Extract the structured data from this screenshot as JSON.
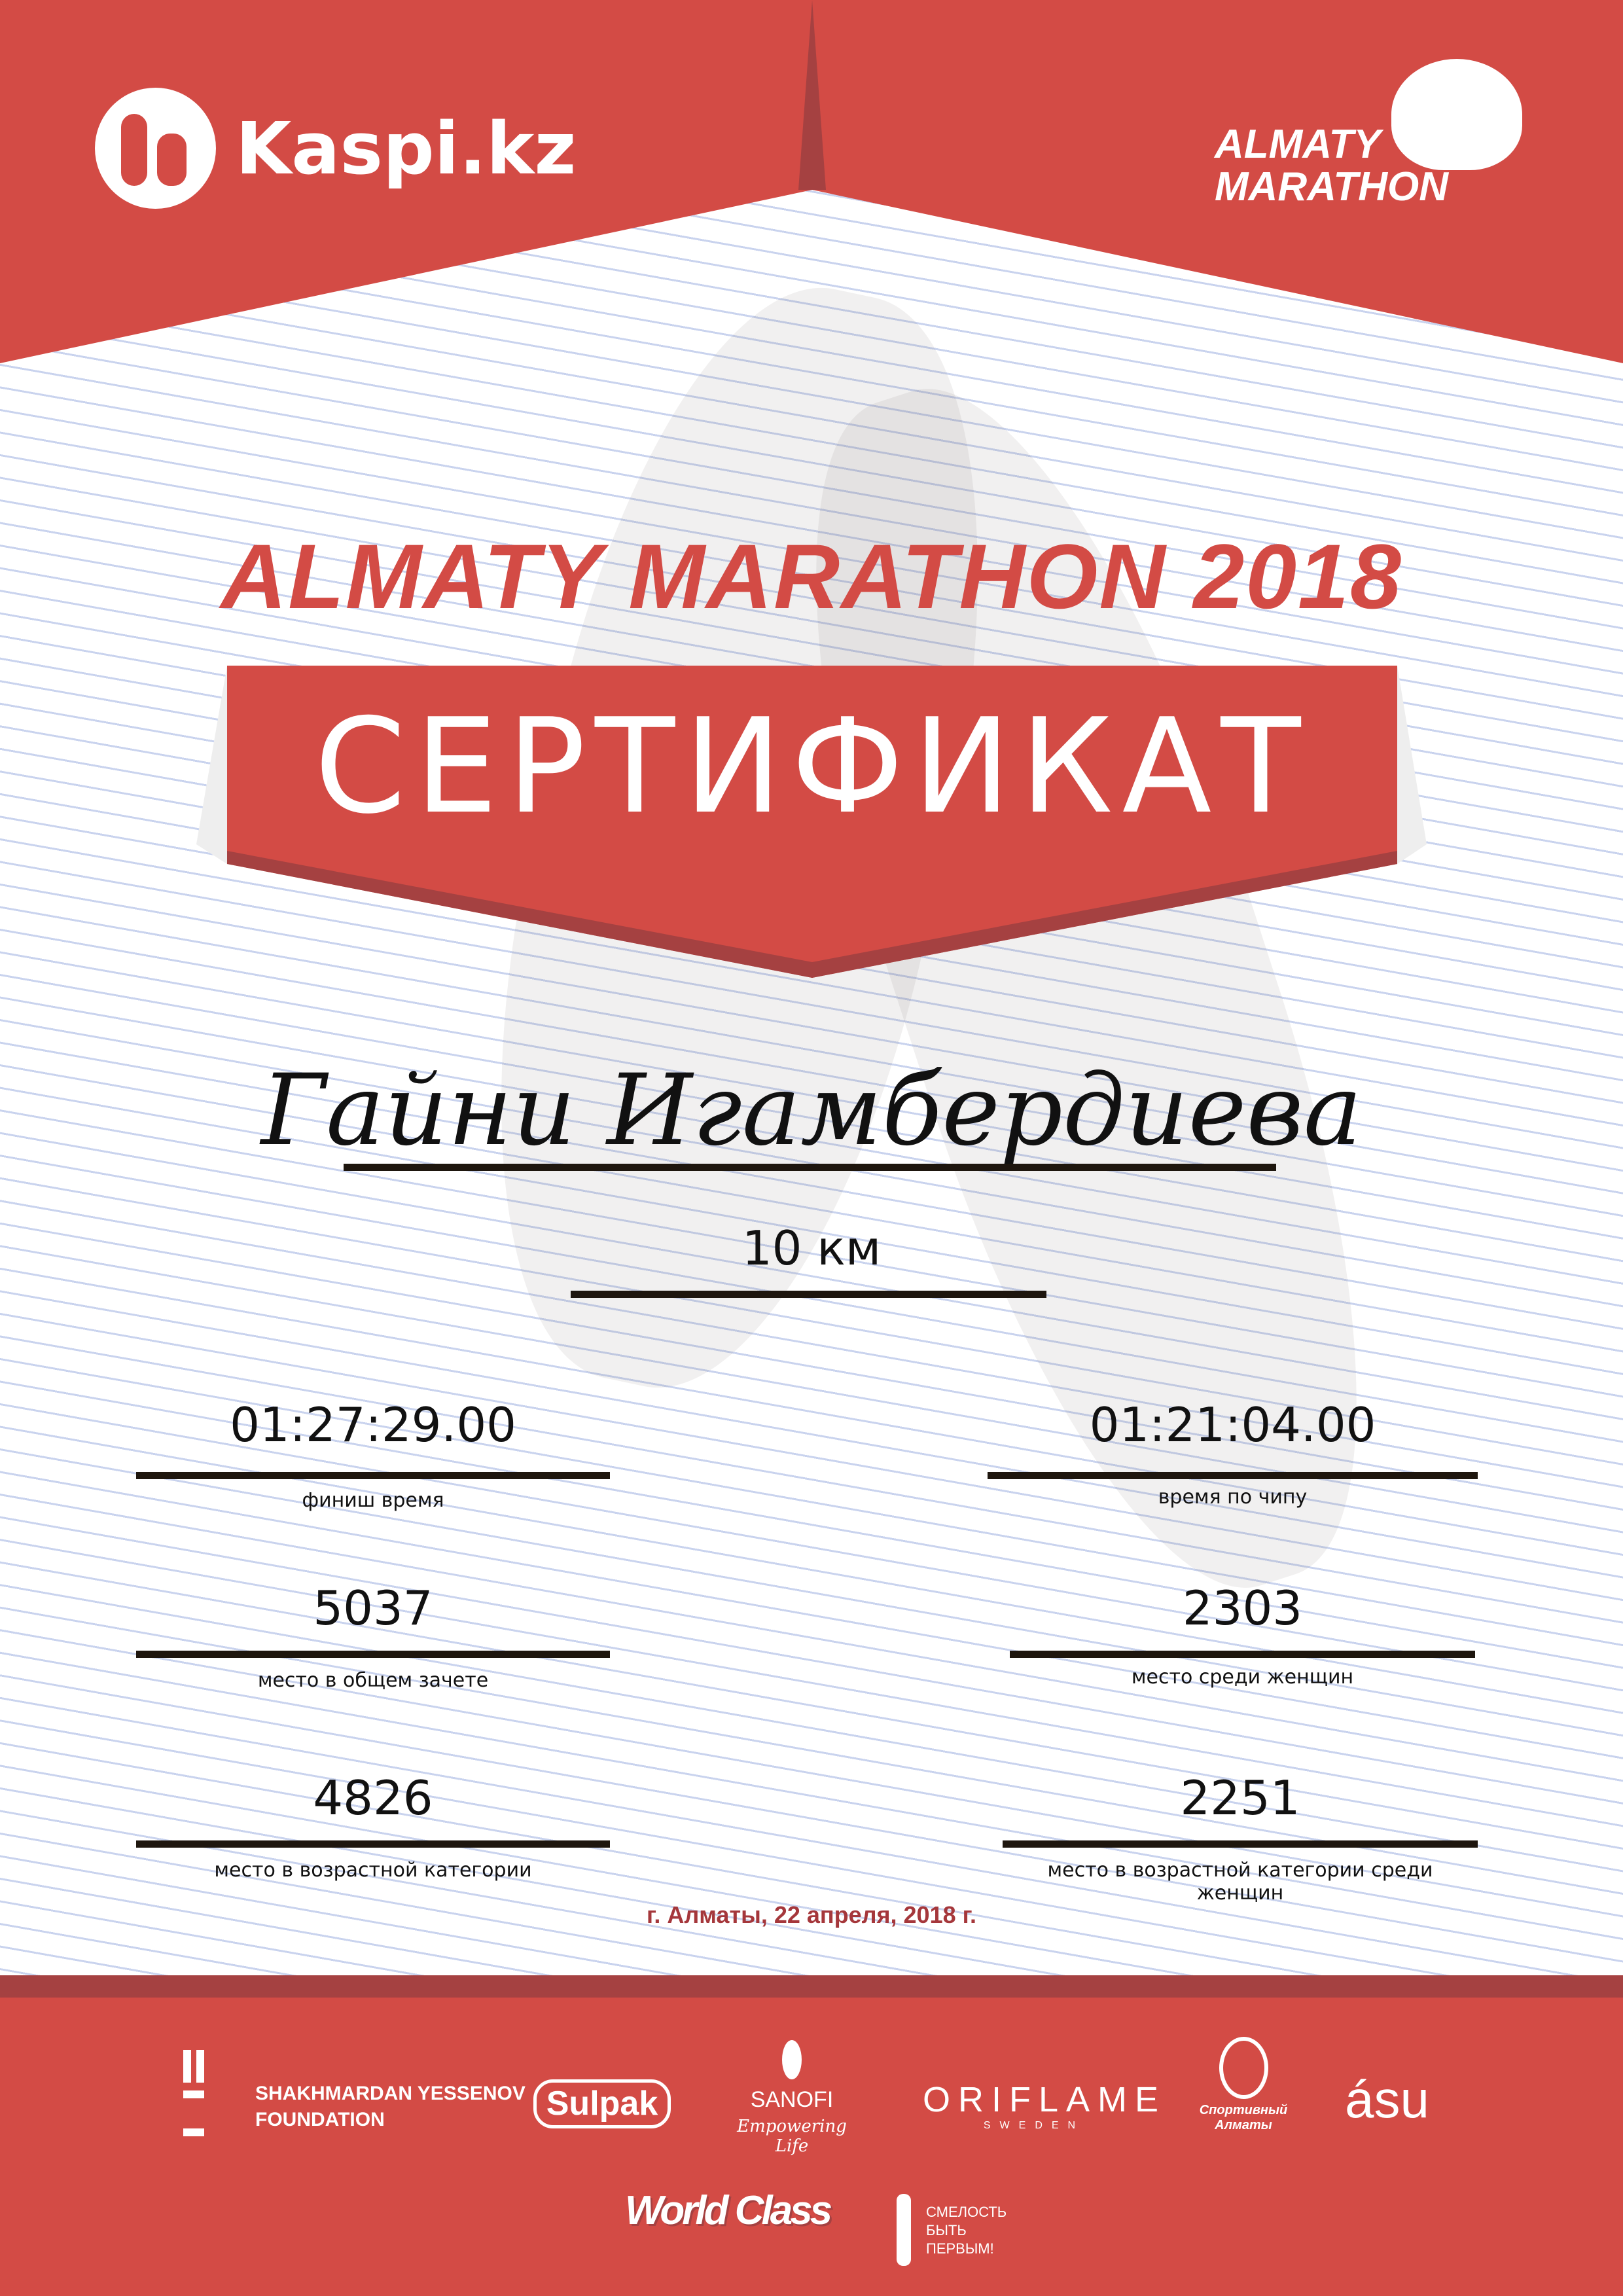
{
  "header": {
    "kaspi_logo": "Kaspi.kz",
    "marathon_logo_line1": "ALMATY",
    "marathon_logo_line2": "MARATHON"
  },
  "title": "ALMATY MARATHON 2018",
  "banner": "СЕРТИФИКАТ",
  "participant": {
    "name": "Гайни Игамбердиева",
    "distance": "10 км"
  },
  "results": {
    "finish_time": {
      "value": "01:27:29.00",
      "label": "финиш время"
    },
    "chip_time": {
      "value": "01:21:04.00",
      "label": "время по чипу"
    },
    "overall_place": {
      "value": "5037",
      "label": "место в общем зачете"
    },
    "women_place": {
      "value": "2303",
      "label": "место среди женщин"
    },
    "age_place": {
      "value": "4826",
      "label": "место в возрастной категории"
    },
    "age_women_place": {
      "value": "2251",
      "label": "место в возрастной категории среди женщин"
    }
  },
  "date": "г. Алматы, 22 апреля, 2018 г.",
  "sponsors": {
    "yessenov_1": "SHAKHMARDAN YESSENOV",
    "yessenov_2": "FOUNDATION",
    "sulpak": "Sulpak",
    "sanofi": "SANOFI",
    "sanofi_tag": "Empowering Life",
    "oriflame": "ORIFLAME",
    "oriflame_sub": "SWEDEN",
    "sport_almaty": "Спортивный Алматы",
    "asu": "ásu",
    "worldclass": "World Class",
    "fund_1": "СМЕЛОСТЬ",
    "fund_2": "БЫТЬ",
    "fund_3": "ПЕРВЫМ!"
  },
  "colors": {
    "primary_red": "#d34b45",
    "dark_red": "#a54141",
    "date_red": "#a5373b"
  }
}
